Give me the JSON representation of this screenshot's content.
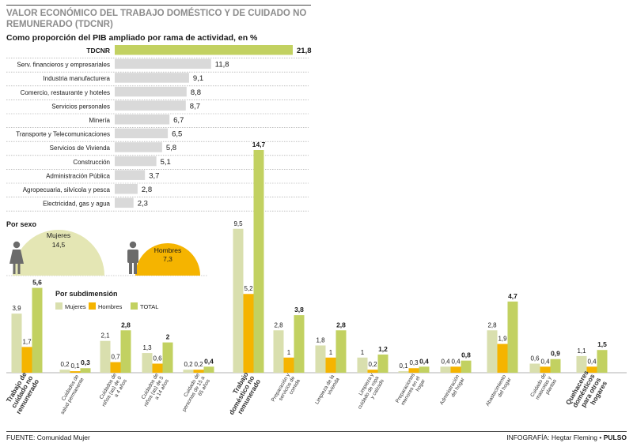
{
  "header": {
    "title": "VALOR ECONÓMICO DEL TRABAJO DOMÉSTICO Y DE CUIDADO NO REMUNERADO (TDCNR)",
    "subtitle": "Como proporción del PIB ampliado por rama de actividad, en %"
  },
  "colors": {
    "mujeres": "#d9dfae",
    "hombres": "#f5b400",
    "total": "#c2d161",
    "gray_bar": "#d9d9d9",
    "tdcnr_bar": "#c2d161",
    "sexo_mujeres": "#e4e6b4",
    "sexo_hombres": "#f5b400"
  },
  "chart_data": [
    {
      "type": "bar",
      "orientation": "horizontal",
      "categories": [
        "TDCNR",
        "Serv. financieros y empresariales",
        "Industria manufacturera",
        "Comercio, restaurante y hoteles",
        "Servicios personales",
        "Minería",
        "Transporte y Telecomunicaciones",
        "Servicios de Vivienda",
        "Construcción",
        "Administración Pública",
        "Agropecuaria, silvícola y pesca",
        "Electricidad, gas y agua"
      ],
      "values": [
        21.8,
        11.8,
        9.1,
        8.8,
        8.7,
        6.7,
        6.5,
        5.8,
        5.1,
        3.7,
        2.8,
        2.3
      ],
      "labels": [
        "21,8",
        "11,8",
        "9,1",
        "8,8",
        "8,7",
        "6,7",
        "6,5",
        "5,8",
        "5,1",
        "3,7",
        "2,8",
        "2,3"
      ]
    },
    {
      "type": "pie",
      "title": "Por sexo",
      "slices": [
        {
          "name": "Mujeres",
          "value": 14.5,
          "label": "14,5"
        },
        {
          "name": "Hombres",
          "value": 7.3,
          "label": "7,3"
        }
      ]
    },
    {
      "type": "bar",
      "title": "Por subdimensión",
      "legend": [
        "Mujeres",
        "Hombres",
        "TOTAL"
      ],
      "groups": [
        {
          "label": "Trabajo de cuidado no remunerado",
          "bold": true,
          "values": [
            3.9,
            1.7,
            5.6
          ],
          "labels": [
            "3,9",
            "1,7",
            "5,6"
          ]
        },
        {
          "label": "Cuidados de salud permanente",
          "bold": false,
          "values": [
            0.2,
            0.1,
            0.3
          ],
          "labels": [
            "0,2",
            "0,1",
            "0,3"
          ]
        },
        {
          "label": "Cuidados de niños (as) de 0 a 4 años",
          "bold": false,
          "values": [
            2.1,
            0.7,
            2.8
          ],
          "labels": [
            "2,1",
            "0,7",
            "2,8"
          ]
        },
        {
          "label": "Cuidados de niños (as) de 5 a 14 años",
          "bold": false,
          "values": [
            1.3,
            0.6,
            2.0
          ],
          "labels": [
            "1,3",
            "0,6",
            "2"
          ]
        },
        {
          "label": "Cuidado de personas de 15 a 65 años",
          "bold": false,
          "values": [
            0.2,
            0.2,
            0.4
          ],
          "labels": [
            "0,2",
            "0,2",
            "0,4"
          ]
        },
        {
          "label": "Trabajo doméstico no remunerado",
          "bold": true,
          "values": [
            9.5,
            5.2,
            14.7
          ],
          "labels": [
            "9,5",
            "5,2",
            "14,7"
          ]
        },
        {
          "label": "Preparación y servicios de comida",
          "bold": false,
          "values": [
            2.8,
            1.0,
            3.8
          ],
          "labels": [
            "2,8",
            "1",
            "3,8"
          ]
        },
        {
          "label": "Limpieza de la vivienda",
          "bold": false,
          "values": [
            1.8,
            1.0,
            2.8
          ],
          "labels": [
            "1,8",
            "1",
            "2,8"
          ]
        },
        {
          "label": "Limpieza y cuidado de ropa y calzado",
          "bold": false,
          "values": [
            1.0,
            0.2,
            1.2
          ],
          "labels": [
            "1",
            "0,2",
            "1,2"
          ]
        },
        {
          "label": "Preparaciones menores en el hogar",
          "bold": false,
          "values": [
            0.1,
            0.3,
            0.4
          ],
          "labels": [
            "0,1",
            "0,3",
            "0,4"
          ]
        },
        {
          "label": "Administración del hogar",
          "bold": false,
          "values": [
            0.4,
            0.4,
            0.8
          ],
          "labels": [
            "0,4",
            "0,4",
            "0,8"
          ]
        },
        {
          "label": "Abastecimiento del hogar",
          "bold": false,
          "values": [
            2.8,
            1.9,
            4.7
          ],
          "labels": [
            "2,8",
            "1,9",
            "4,7"
          ]
        },
        {
          "label": "Cuidado de mascotas y plantas",
          "bold": false,
          "values": [
            0.6,
            0.4,
            0.9
          ],
          "labels": [
            "0,6",
            "0,4",
            "0,9"
          ]
        },
        {
          "label": "Quehaceres domésticos para otros hogares",
          "bold": true,
          "values": [
            1.1,
            0.4,
            1.5
          ],
          "labels": [
            "1,1",
            "0,4",
            "1,5"
          ]
        }
      ]
    }
  ],
  "footer": {
    "source": "FUENTE: Comunidad Mujer",
    "credit_prefix": "INFOGRAFÍA: Hegtar Fleming • ",
    "credit_brand": "PULSO"
  }
}
